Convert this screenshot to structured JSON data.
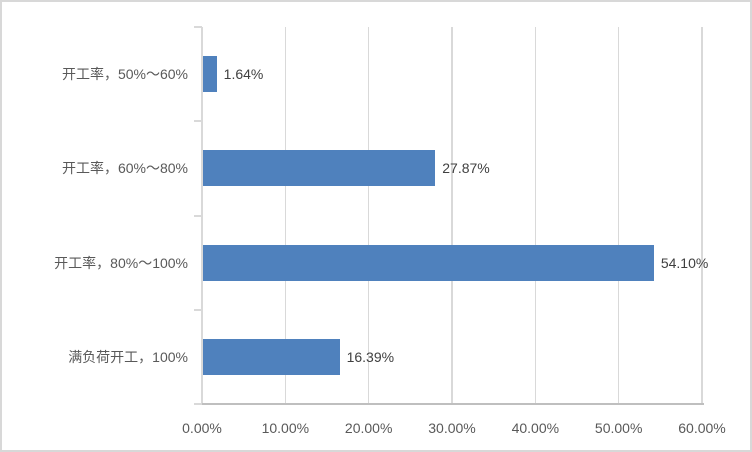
{
  "chart_data": {
    "type": "bar",
    "orientation": "horizontal",
    "title": "",
    "legend": "none",
    "grid": "vertical-major",
    "categories": [
      "开工率，50%～60%",
      "开工率，60%～80%",
      "开工率，80%～100%",
      "满负荷开工，100%"
    ],
    "values": [
      1.64,
      27.87,
      54.1,
      16.39
    ],
    "data_labels": [
      "1.64%",
      "27.87%",
      "54.10%",
      "16.39%"
    ],
    "x_axis": {
      "min": 0,
      "max": 60,
      "ticks": [
        0,
        10,
        20,
        30,
        40,
        50,
        60
      ],
      "tick_labels": [
        "0.00%",
        "10.00%",
        "20.00%",
        "30.00%",
        "40.00%",
        "50.00%",
        "60.00%"
      ]
    }
  },
  "style": {
    "bar_color": "#4F81BD",
    "gridline_color": "#D9D9D9",
    "axis_line_color": "#BFBFBF",
    "category_label_color": "#595959",
    "value_label_color": "#404040",
    "border_color": "#D8D8D8",
    "background": "#FFFFFF"
  }
}
